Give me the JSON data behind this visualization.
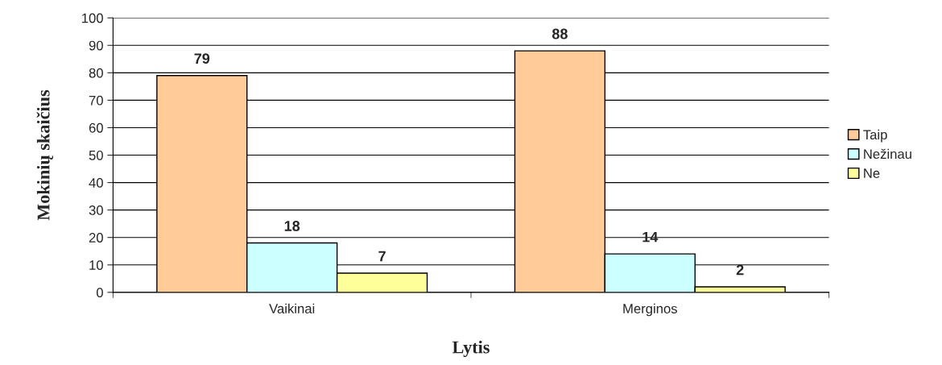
{
  "chart_data": {
    "type": "bar",
    "xlabel": "Lytis",
    "ylabel": "Mokinių skaičius",
    "categories": [
      "Vaikinai",
      "Merginos"
    ],
    "series": [
      {
        "name": "Taip",
        "color": "#ffcc99",
        "values": [
          79,
          88
        ]
      },
      {
        "name": "Nežinau",
        "color": "#ccffff",
        "values": [
          18,
          14
        ]
      },
      {
        "name": "Ne",
        "color": "#ffff99",
        "values": [
          7,
          2
        ]
      }
    ],
    "ylim": [
      0,
      100
    ],
    "yticks": [
      0,
      10,
      20,
      30,
      40,
      50,
      60,
      70,
      80,
      90,
      100
    ],
    "grid": "y",
    "legend": "right",
    "data_labels": true
  }
}
